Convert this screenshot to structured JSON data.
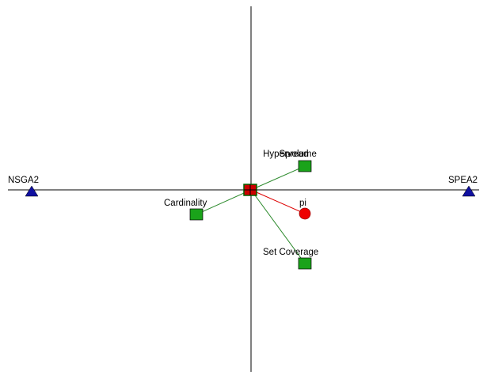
{
  "actions": [
    {
      "label": "NSGA2"
    },
    {
      "label": "SPEA2"
    }
  ],
  "criteria": [
    {
      "label": "Hypervolume"
    },
    {
      "label": "Spread"
    },
    {
      "label": "Cardinality"
    },
    {
      "label": "Set Coverage"
    }
  ],
  "decision_axis": {
    "label": "pi"
  }
}
